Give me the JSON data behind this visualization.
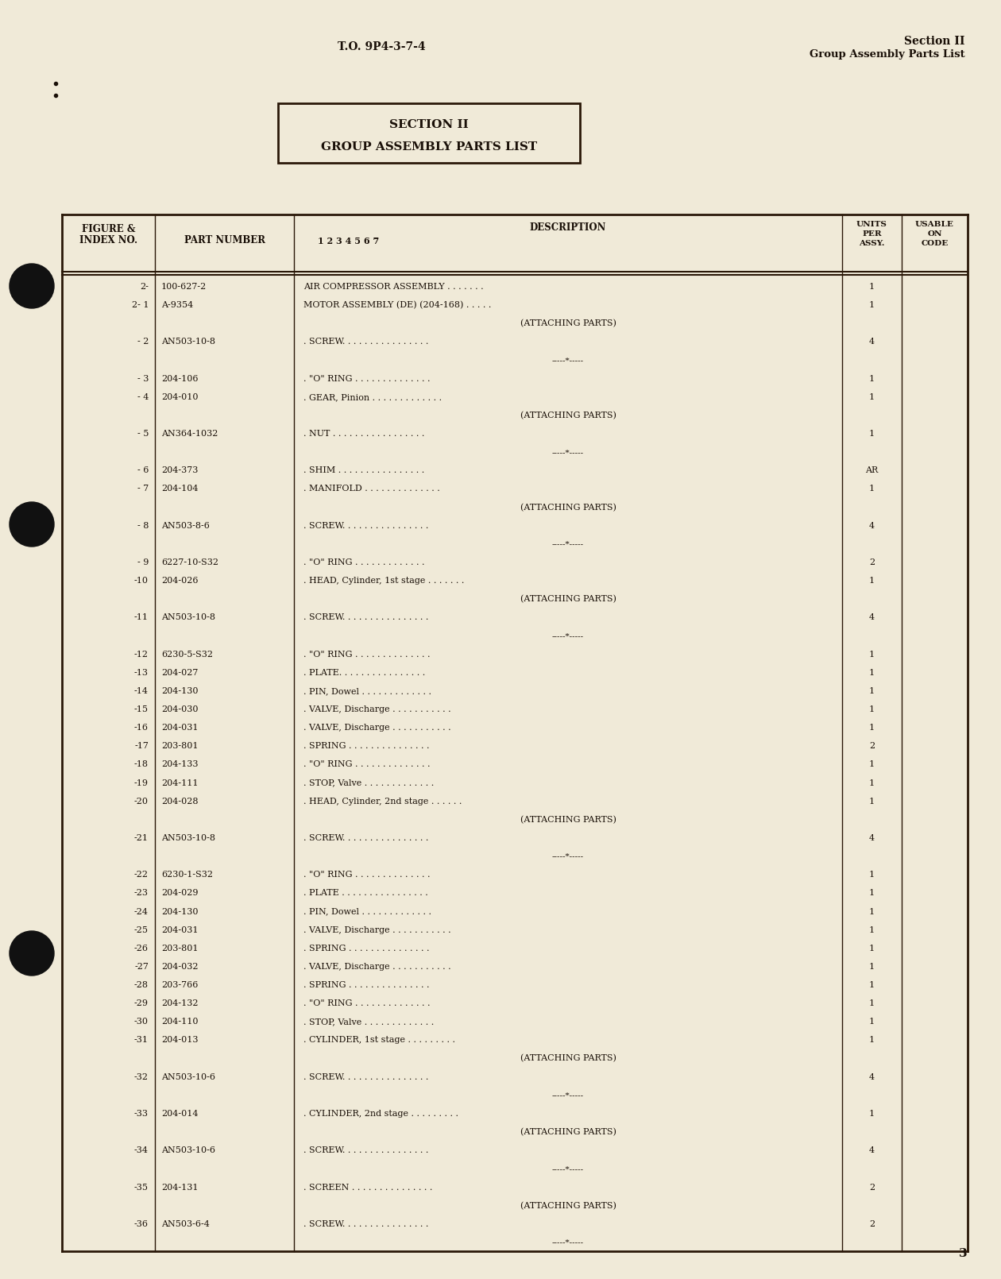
{
  "page_bg": "#f0ead8",
  "text_color": "#1a1008",
  "header_left": "T.O. 9P4-3-7-4",
  "header_right_line1": "Section II",
  "header_right_line2": "Group Assembly Parts List",
  "section_box_line1": "SECTION II",
  "section_box_line2": "GROUP ASSEMBLY PARTS LIST",
  "page_number": "3",
  "rows": [
    {
      "index": "2-",
      "part": "100-627-2",
      "desc": "AIR COMPRESSOR ASSEMBLY . . . . . . .",
      "units": "1",
      "type": "normal"
    },
    {
      "index": "2- 1",
      "part": "A-9354",
      "desc": "MOTOR ASSEMBLY (DE) (204-168) . . . . .",
      "units": "1",
      "type": "normal"
    },
    {
      "index": "",
      "part": "",
      "desc": "(ATTACHING PARTS)",
      "units": "",
      "type": "attaching"
    },
    {
      "index": "- 2",
      "part": "AN503-10-8",
      "desc": ". SCREW. . . . . . . . . . . . . . . .",
      "units": "4",
      "type": "normal"
    },
    {
      "index": "",
      "part": "",
      "desc": "-----*-----",
      "units": "",
      "type": "separator"
    },
    {
      "index": "- 3",
      "part": "204-106",
      "desc": ". \"O\" RING . . . . . . . . . . . . . .",
      "units": "1",
      "type": "normal"
    },
    {
      "index": "- 4",
      "part": "204-010",
      "desc": ". GEAR, Pinion . . . . . . . . . . . . .",
      "units": "1",
      "type": "normal"
    },
    {
      "index": "",
      "part": "",
      "desc": "(ATTACHING PARTS)",
      "units": "",
      "type": "attaching"
    },
    {
      "index": "- 5",
      "part": "AN364-1032",
      "desc": ". NUT . . . . . . . . . . . . . . . . .",
      "units": "1",
      "type": "normal"
    },
    {
      "index": "",
      "part": "",
      "desc": "-----*-----",
      "units": "",
      "type": "separator"
    },
    {
      "index": "- 6",
      "part": "204-373",
      "desc": ". SHIM . . . . . . . . . . . . . . . .",
      "units": "AR",
      "type": "normal"
    },
    {
      "index": "- 7",
      "part": "204-104",
      "desc": ". MANIFOLD . . . . . . . . . . . . . .",
      "units": "1",
      "type": "normal"
    },
    {
      "index": "",
      "part": "",
      "desc": "(ATTACHING PARTS)",
      "units": "",
      "type": "attaching"
    },
    {
      "index": "- 8",
      "part": "AN503-8-6",
      "desc": ". SCREW. . . . . . . . . . . . . . . .",
      "units": "4",
      "type": "normal"
    },
    {
      "index": "",
      "part": "",
      "desc": "-----*-----",
      "units": "",
      "type": "separator"
    },
    {
      "index": "- 9",
      "part": "6227-10-S32",
      "desc": ". \"O\" RING . . . . . . . . . . . . .",
      "units": "2",
      "type": "normal"
    },
    {
      "index": "-10",
      "part": "204-026",
      "desc": ". HEAD, Cylinder, 1st stage . . . . . . .",
      "units": "1",
      "type": "normal"
    },
    {
      "index": "",
      "part": "",
      "desc": "(ATTACHING PARTS)",
      "units": "",
      "type": "attaching"
    },
    {
      "index": "-11",
      "part": "AN503-10-8",
      "desc": ". SCREW. . . . . . . . . . . . . . . .",
      "units": "4",
      "type": "normal"
    },
    {
      "index": "",
      "part": "",
      "desc": "-----*-----",
      "units": "",
      "type": "separator"
    },
    {
      "index": "-12",
      "part": "6230-5-S32",
      "desc": ". \"O\" RING . . . . . . . . . . . . . .",
      "units": "1",
      "type": "normal"
    },
    {
      "index": "-13",
      "part": "204-027",
      "desc": ". PLATE. . . . . . . . . . . . . . . .",
      "units": "1",
      "type": "normal"
    },
    {
      "index": "-14",
      "part": "204-130",
      "desc": ". PIN, Dowel . . . . . . . . . . . . .",
      "units": "1",
      "type": "normal"
    },
    {
      "index": "-15",
      "part": "204-030",
      "desc": ". VALVE, Discharge . . . . . . . . . . .",
      "units": "1",
      "type": "normal"
    },
    {
      "index": "-16",
      "part": "204-031",
      "desc": ". VALVE, Discharge . . . . . . . . . . .",
      "units": "1",
      "type": "normal"
    },
    {
      "index": "-17",
      "part": "203-801",
      "desc": ". SPRING . . . . . . . . . . . . . . .",
      "units": "2",
      "type": "normal"
    },
    {
      "index": "-18",
      "part": "204-133",
      "desc": ". \"O\" RING . . . . . . . . . . . . . .",
      "units": "1",
      "type": "normal"
    },
    {
      "index": "-19",
      "part": "204-111",
      "desc": ". STOP, Valve . . . . . . . . . . . . .",
      "units": "1",
      "type": "normal"
    },
    {
      "index": "-20",
      "part": "204-028",
      "desc": ". HEAD, Cylinder, 2nd stage . . . . . .",
      "units": "1",
      "type": "normal"
    },
    {
      "index": "",
      "part": "",
      "desc": "(ATTACHING PARTS)",
      "units": "",
      "type": "attaching"
    },
    {
      "index": "-21",
      "part": "AN503-10-8",
      "desc": ". SCREW. . . . . . . . . . . . . . . .",
      "units": "4",
      "type": "normal"
    },
    {
      "index": "",
      "part": "",
      "desc": "-----*-----",
      "units": "",
      "type": "separator"
    },
    {
      "index": "-22",
      "part": "6230-1-S32",
      "desc": ". \"O\" RING . . . . . . . . . . . . . .",
      "units": "1",
      "type": "normal"
    },
    {
      "index": "-23",
      "part": "204-029",
      "desc": ". PLATE . . . . . . . . . . . . . . . .",
      "units": "1",
      "type": "normal"
    },
    {
      "index": "-24",
      "part": "204-130",
      "desc": ". PIN, Dowel . . . . . . . . . . . . .",
      "units": "1",
      "type": "normal"
    },
    {
      "index": "-25",
      "part": "204-031",
      "desc": ". VALVE, Discharge . . . . . . . . . . .",
      "units": "1",
      "type": "normal"
    },
    {
      "index": "-26",
      "part": "203-801",
      "desc": ". SPRING . . . . . . . . . . . . . . .",
      "units": "1",
      "type": "normal"
    },
    {
      "index": "-27",
      "part": "204-032",
      "desc": ". VALVE, Discharge . . . . . . . . . . .",
      "units": "1",
      "type": "normal"
    },
    {
      "index": "-28",
      "part": "203-766",
      "desc": ". SPRING . . . . . . . . . . . . . . .",
      "units": "1",
      "type": "normal"
    },
    {
      "index": "-29",
      "part": "204-132",
      "desc": ". \"O\" RING . . . . . . . . . . . . . .",
      "units": "1",
      "type": "normal"
    },
    {
      "index": "-30",
      "part": "204-110",
      "desc": ". STOP, Valve . . . . . . . . . . . . .",
      "units": "1",
      "type": "normal"
    },
    {
      "index": "-31",
      "part": "204-013",
      "desc": ". CYLINDER, 1st stage . . . . . . . . .",
      "units": "1",
      "type": "normal"
    },
    {
      "index": "",
      "part": "",
      "desc": "(ATTACHING PARTS)",
      "units": "",
      "type": "attaching"
    },
    {
      "index": "-32",
      "part": "AN503-10-6",
      "desc": ". SCREW. . . . . . . . . . . . . . . .",
      "units": "4",
      "type": "normal"
    },
    {
      "index": "",
      "part": "",
      "desc": "-----*-----",
      "units": "",
      "type": "separator"
    },
    {
      "index": "-33",
      "part": "204-014",
      "desc": ". CYLINDER, 2nd stage . . . . . . . . .",
      "units": "1",
      "type": "normal"
    },
    {
      "index": "",
      "part": "",
      "desc": "(ATTACHING PARTS)",
      "units": "",
      "type": "attaching"
    },
    {
      "index": "-34",
      "part": "AN503-10-6",
      "desc": ". SCREW. . . . . . . . . . . . . . . .",
      "units": "4",
      "type": "normal"
    },
    {
      "index": "",
      "part": "",
      "desc": "-----*-----",
      "units": "",
      "type": "separator"
    },
    {
      "index": "-35",
      "part": "204-131",
      "desc": ". SCREEN . . . . . . . . . . . . . . .",
      "units": "2",
      "type": "normal"
    },
    {
      "index": "",
      "part": "",
      "desc": "(ATTACHING PARTS)",
      "units": "",
      "type": "attaching"
    },
    {
      "index": "-36",
      "part": "AN503-6-4",
      "desc": ". SCREW. . . . . . . . . . . . . . . .",
      "units": "2",
      "type": "normal"
    },
    {
      "index": "",
      "part": "",
      "desc": "-----*-----",
      "units": "",
      "type": "separator"
    }
  ]
}
